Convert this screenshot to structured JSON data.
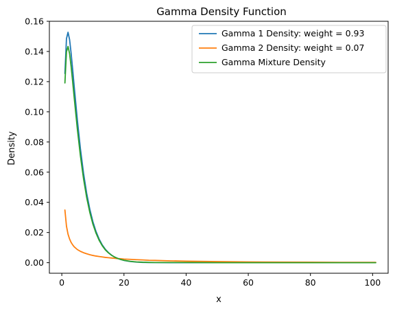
{
  "chart_data": {
    "type": "line",
    "title": "Gamma Density Function",
    "xlabel": "x",
    "ylabel": "Density",
    "xlim": [
      -4,
      105
    ],
    "ylim": [
      -0.007,
      0.16
    ],
    "xticks": [
      0,
      20,
      40,
      60,
      80,
      100
    ],
    "yticks": [
      0.0,
      0.02,
      0.04,
      0.06,
      0.08,
      0.1,
      0.12,
      0.14,
      0.16
    ],
    "ytick_labels": [
      "0.00",
      "0.02",
      "0.04",
      "0.06",
      "0.08",
      "0.10",
      "0.12",
      "0.14",
      "0.16"
    ],
    "xtick_labels": [
      "0",
      "20",
      "40",
      "60",
      "80",
      "100"
    ],
    "grid": false,
    "legend_position": "top-right",
    "series": [
      {
        "name": "Gamma 1 Density: weight = 0.93",
        "color": "#1f77b4",
        "x": [
          1,
          1.5,
          2,
          2.5,
          3,
          3.5,
          4,
          5,
          6,
          7,
          8,
          9,
          10,
          11,
          12,
          13,
          14,
          15,
          16,
          17,
          18,
          19,
          20,
          22,
          24,
          26,
          28,
          30,
          35,
          40,
          50,
          60,
          70,
          80,
          90,
          101
        ],
        "y": [
          0.1254,
          0.1485,
          0.1527,
          0.1479,
          0.1388,
          0.1279,
          0.1165,
          0.0946,
          0.0753,
          0.0592,
          0.046,
          0.0355,
          0.0272,
          0.0207,
          0.0157,
          0.0118,
          0.0089,
          0.0067,
          0.005,
          0.0037,
          0.0028,
          0.0021,
          0.0015,
          0.0008,
          0.0004,
          0.0002,
          0.0001,
          0.0001,
          0.0,
          0.0,
          0.0,
          0.0,
          0.0,
          0.0,
          0.0,
          0.0
        ]
      },
      {
        "name": "Gamma 2 Density: weight = 0.07",
        "color": "#ff7f0e",
        "x": [
          1,
          1.5,
          2,
          2.5,
          3,
          3.5,
          4,
          5,
          6,
          7,
          8,
          9,
          10,
          11,
          12,
          13,
          14,
          15,
          16,
          17,
          18,
          19,
          20,
          22,
          24,
          26,
          28,
          30,
          35,
          40,
          50,
          60,
          70,
          80,
          90,
          101
        ],
        "y": [
          0.0349,
          0.0242,
          0.0189,
          0.0157,
          0.0134,
          0.0118,
          0.0105,
          0.0087,
          0.0075,
          0.0066,
          0.0059,
          0.0053,
          0.0048,
          0.0044,
          0.0041,
          0.0038,
          0.0035,
          0.0033,
          0.0031,
          0.0029,
          0.0027,
          0.0026,
          0.0024,
          0.0022,
          0.002,
          0.0018,
          0.0016,
          0.0015,
          0.0012,
          0.001,
          0.0007,
          0.0005,
          0.0004,
          0.0003,
          0.0002,
          0.0002
        ]
      },
      {
        "name": "Gamma Mixture Density",
        "color": "#2ca02c",
        "x": [
          1,
          1.5,
          2,
          2.5,
          3,
          3.5,
          4,
          5,
          6,
          7,
          8,
          9,
          10,
          11,
          12,
          13,
          14,
          15,
          16,
          17,
          18,
          19,
          20,
          22,
          24,
          26,
          28,
          30,
          35,
          40,
          50,
          60,
          70,
          80,
          90,
          101
        ],
        "y": [
          0.1191,
          0.1398,
          0.1433,
          0.1386,
          0.13,
          0.1198,
          0.1091,
          0.0886,
          0.0706,
          0.0555,
          0.0432,
          0.0334,
          0.0256,
          0.0196,
          0.0149,
          0.0113,
          0.0085,
          0.0065,
          0.0049,
          0.0037,
          0.0028,
          0.0021,
          0.0016,
          0.0009,
          0.0005,
          0.0003,
          0.0002,
          0.0001,
          0.0001,
          0.0001,
          0.0,
          0.0,
          0.0,
          0.0,
          0.0,
          0.0
        ]
      }
    ]
  }
}
